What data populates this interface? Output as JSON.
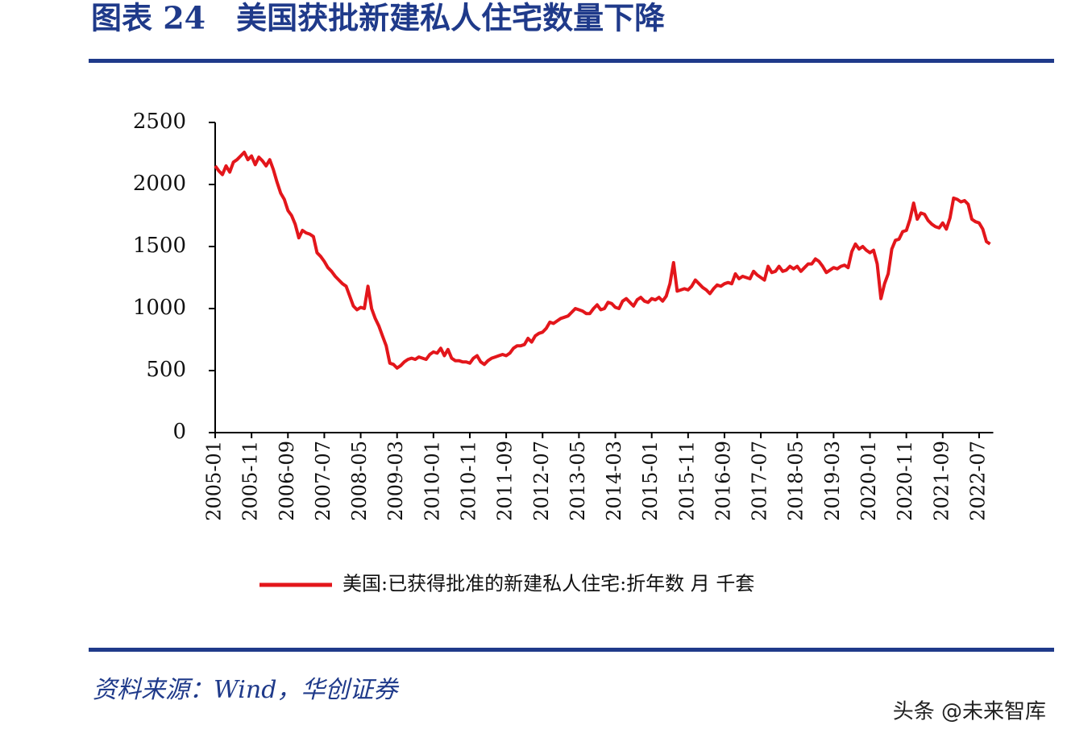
{
  "chart_data": {
    "type": "line",
    "title": "图表 24　美国获批新建私人住宅数量下降",
    "source": "资料来源：Wind，华创证券",
    "watermark": "头条 @未来智库",
    "categories": [
      "2005-01",
      null,
      null,
      null,
      null,
      null,
      null,
      null,
      null,
      null,
      "2005-11",
      null,
      null,
      null,
      null,
      null,
      null,
      null,
      null,
      null,
      "2006-09",
      null,
      null,
      null,
      null,
      null,
      null,
      null,
      null,
      null,
      "2007-07",
      null,
      null,
      null,
      null,
      null,
      null,
      null,
      null,
      null,
      "2008-05",
      null,
      null,
      null,
      null,
      null,
      null,
      null,
      null,
      null,
      "2009-03",
      null,
      null,
      null,
      null,
      null,
      null,
      null,
      null,
      null,
      "2010-01",
      null,
      null,
      null,
      null,
      null,
      null,
      null,
      null,
      null,
      "2010-11",
      null,
      null,
      null,
      null,
      null,
      null,
      null,
      null,
      null,
      "2011-09",
      null,
      null,
      null,
      null,
      null,
      null,
      null,
      null,
      null,
      "2012-07",
      null,
      null,
      null,
      null,
      null,
      null,
      null,
      null,
      null,
      "2013-05",
      null,
      null,
      null,
      null,
      null,
      null,
      null,
      null,
      null,
      "2014-03",
      null,
      null,
      null,
      null,
      null,
      null,
      null,
      null,
      null,
      "2015-01",
      null,
      null,
      null,
      null,
      null,
      null,
      null,
      null,
      null,
      "2015-11",
      null,
      null,
      null,
      null,
      null,
      null,
      null,
      null,
      null,
      "2016-09",
      null,
      null,
      null,
      null,
      null,
      null,
      null,
      null,
      null,
      "2017-07",
      null,
      null,
      null,
      null,
      null,
      null,
      null,
      null,
      null,
      "2018-05",
      null,
      null,
      null,
      null,
      null,
      null,
      null,
      null,
      null,
      "2019-03",
      null,
      null,
      null,
      null,
      null,
      null,
      null,
      null,
      null,
      "2020-01",
      null,
      null,
      null,
      null,
      null,
      null,
      null,
      null,
      null,
      "2020-11",
      null,
      null,
      null,
      null,
      null,
      null,
      null,
      null,
      null,
      "2021-09",
      null,
      null,
      null,
      null,
      null,
      null,
      null,
      null,
      null,
      "2022-07",
      null,
      null,
      null
    ],
    "series": [
      {
        "name": "美国:已获得批准的新建私人住宅:折年数 月 千套",
        "color": "#e3161b",
        "values": [
          2150,
          2110,
          2080,
          2150,
          2100,
          2180,
          2200,
          2230,
          2260,
          2200,
          2230,
          2160,
          2220,
          2190,
          2150,
          2200,
          2120,
          2020,
          1930,
          1880,
          1790,
          1750,
          1680,
          1570,
          1630,
          1610,
          1600,
          1580,
          1450,
          1420,
          1380,
          1330,
          1300,
          1260,
          1230,
          1200,
          1180,
          1100,
          1020,
          990,
          1010,
          1000,
          1180,
          1000,
          920,
          860,
          780,
          700,
          560,
          550,
          520,
          540,
          570,
          590,
          600,
          590,
          610,
          600,
          590,
          630,
          650,
          640,
          680,
          620,
          670,
          600,
          580,
          580,
          570,
          570,
          560,
          600,
          620,
          570,
          550,
          580,
          600,
          610,
          620,
          630,
          620,
          640,
          680,
          700,
          700,
          710,
          760,
          730,
          780,
          800,
          810,
          840,
          890,
          880,
          900,
          920,
          930,
          940,
          970,
          1000,
          990,
          980,
          960,
          960,
          1000,
          1030,
          990,
          1000,
          1050,
          1040,
          1010,
          1000,
          1060,
          1080,
          1050,
          1020,
          1070,
          1090,
          1060,
          1050,
          1080,
          1070,
          1090,
          1060,
          1100,
          1200,
          1370,
          1140,
          1150,
          1160,
          1150,
          1180,
          1230,
          1200,
          1170,
          1150,
          1120,
          1160,
          1190,
          1180,
          1200,
          1210,
          1200,
          1280,
          1240,
          1260,
          1250,
          1240,
          1300,
          1270,
          1250,
          1230,
          1340,
          1290,
          1300,
          1340,
          1300,
          1310,
          1340,
          1320,
          1340,
          1300,
          1330,
          1360,
          1360,
          1400,
          1380,
          1340,
          1290,
          1310,
          1330,
          1320,
          1340,
          1350,
          1330,
          1460,
          1520,
          1480,
          1500,
          1470,
          1450,
          1470,
          1360,
          1080,
          1200,
          1280,
          1480,
          1550,
          1560,
          1620,
          1630,
          1720,
          1850,
          1720,
          1770,
          1760,
          1710,
          1680,
          1660,
          1650,
          1690,
          1640,
          1730,
          1890,
          1880,
          1860,
          1870,
          1840,
          1720,
          1700,
          1690,
          1640,
          1540,
          1520
        ]
      }
    ],
    "ylim": [
      0,
      2500
    ],
    "yticks": [
      0,
      500,
      1000,
      1500,
      2000,
      2500
    ],
    "grid": false,
    "legend": "bottom"
  }
}
